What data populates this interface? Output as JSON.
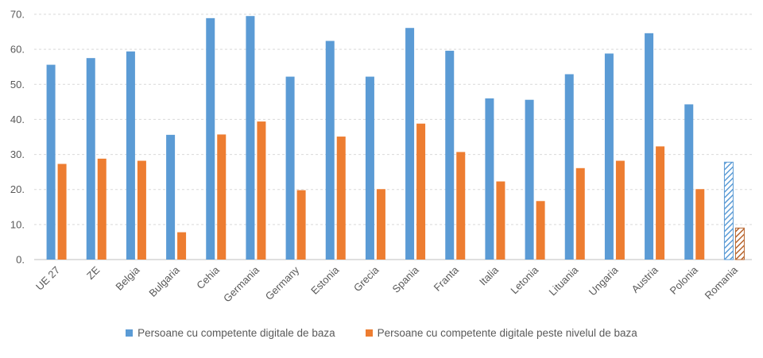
{
  "chart_data": {
    "type": "bar",
    "categories": [
      "UE 27",
      "ZE",
      "Belgia",
      "Bulgaria",
      "Cehia",
      "Germania",
      "Germany",
      "Estonia",
      "Grecia",
      "Spania",
      "Franta",
      "Italia",
      "Letonia",
      "Lituania",
      "Ungaria",
      "Austria",
      "Polonia",
      "Romania"
    ],
    "series": [
      {
        "name": "Persoane cu competente digitale de baza",
        "color": "#5B9BD5",
        "values": [
          55.6,
          57.5,
          59.4,
          35.6,
          68.9,
          69.5,
          52.2,
          62.4,
          52.2,
          66.1,
          59.6,
          46.0,
          45.6,
          52.9,
          58.8,
          64.6,
          44.3,
          27.8
        ]
      },
      {
        "name": "Persoane cu competente digitale peste nivelul de baza",
        "color": "#ED7D31",
        "values": [
          27.3,
          28.8,
          28.2,
          7.8,
          35.7,
          39.4,
          19.8,
          35.1,
          20.1,
          38.8,
          30.7,
          22.3,
          16.7,
          26.1,
          28.2,
          32.3,
          20.1,
          9.0
        ]
      }
    ],
    "hatched_categories": [
      "Romania"
    ],
    "y_ticks": [
      "0.",
      "10.",
      "20.",
      "30.",
      "40.",
      "50.",
      "60.",
      "70."
    ],
    "ylim": [
      0,
      70
    ],
    "grid": true,
    "legend_position": "bottom"
  }
}
